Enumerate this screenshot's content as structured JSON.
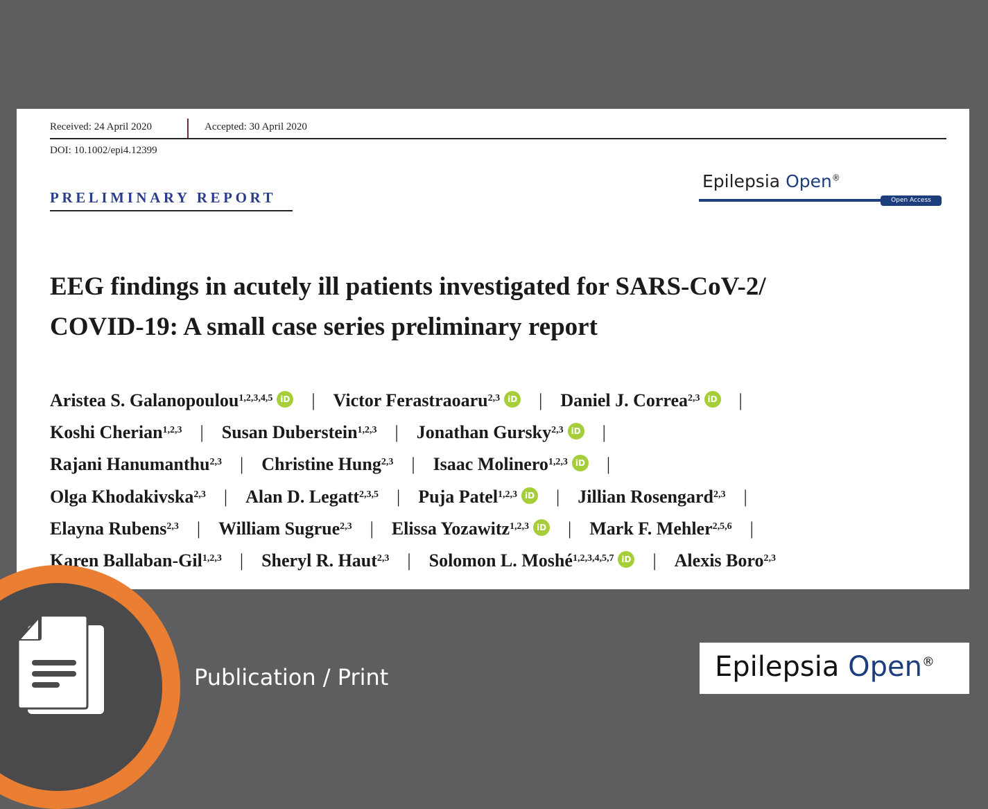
{
  "paper": {
    "received": "Received: 24 April 2020",
    "accepted": "Accepted: 30 April 2020",
    "doi": "DOI: 10.1002/epi4.12399",
    "section": "PRELIMINARY REPORT",
    "journal": {
      "name": "Epilepsia",
      "name_accent": "Open",
      "mark": "®",
      "badge": "Open Access"
    },
    "title_line1": "EEG findings in acutely ill patients investigated for SARS-CoV-2/",
    "title_line2": "COVID-19: A small case series preliminary report",
    "authors": [
      [
        {
          "name": "Aristea S. Galanopoulou",
          "aff": "1,2,3,4,5",
          "orcid": true
        },
        {
          "name": "Victor Ferastraoaru",
          "aff": "2,3",
          "orcid": true
        },
        {
          "name": "Daniel J. Correa",
          "aff": "2,3",
          "orcid": true
        }
      ],
      [
        {
          "name": "Koshi Cherian",
          "aff": "1,2,3",
          "orcid": false
        },
        {
          "name": "Susan Duberstein",
          "aff": "1,2,3",
          "orcid": false
        },
        {
          "name": "Jonathan Gursky",
          "aff": "2,3",
          "orcid": true
        }
      ],
      [
        {
          "name": "Rajani Hanumanthu",
          "aff": "2,3",
          "orcid": false
        },
        {
          "name": "Christine Hung",
          "aff": "2,3",
          "orcid": false
        },
        {
          "name": "Isaac Molinero",
          "aff": "1,2,3",
          "orcid": true
        }
      ],
      [
        {
          "name": "Olga Khodakivska",
          "aff": "2,3",
          "orcid": false
        },
        {
          "name": "Alan D. Legatt",
          "aff": "2,3,5",
          "orcid": false
        },
        {
          "name": "Puja Patel",
          "aff": "1,2,3",
          "orcid": true
        },
        {
          "name": "Jillian Rosengard",
          "aff": "2,3",
          "orcid": false
        }
      ],
      [
        {
          "name": "Elayna Rubens",
          "aff": "2,3",
          "orcid": false
        },
        {
          "name": "William Sugrue",
          "aff": "2,3",
          "orcid": false
        },
        {
          "name": "Elissa Yozawitz",
          "aff": "1,2,3",
          "orcid": true
        },
        {
          "name": "Mark F. Mehler",
          "aff": "2,5,6",
          "orcid": false
        }
      ],
      [
        {
          "name": "Karen Ballaban-Gil",
          "aff": "1,2,3",
          "orcid": false
        },
        {
          "name": "Sheryl R. Haut",
          "aff": "2,3",
          "orcid": false
        },
        {
          "name": "Solomon L. Moshé",
          "aff": "1,2,3,4,5,7",
          "orcid": true
        },
        {
          "name": "Alexis Boro",
          "aff": "2,3",
          "orcid": false
        }
      ]
    ],
    "line_trailing_pipe": [
      true,
      true,
      true,
      true,
      true,
      false
    ],
    "orcid_label": "iD"
  },
  "footer": {
    "category": "Publication / Print",
    "icon": "document-icon",
    "logo": {
      "name": "Epilepsia",
      "name_accent": "Open",
      "mark": "®"
    }
  },
  "colors": {
    "background": "#5e5e60",
    "accent_orange": "#ea7f33",
    "journal_blue": "#1c3e7d",
    "section_blue": "#2a3d8c",
    "orcid_green": "#a6ce39"
  }
}
